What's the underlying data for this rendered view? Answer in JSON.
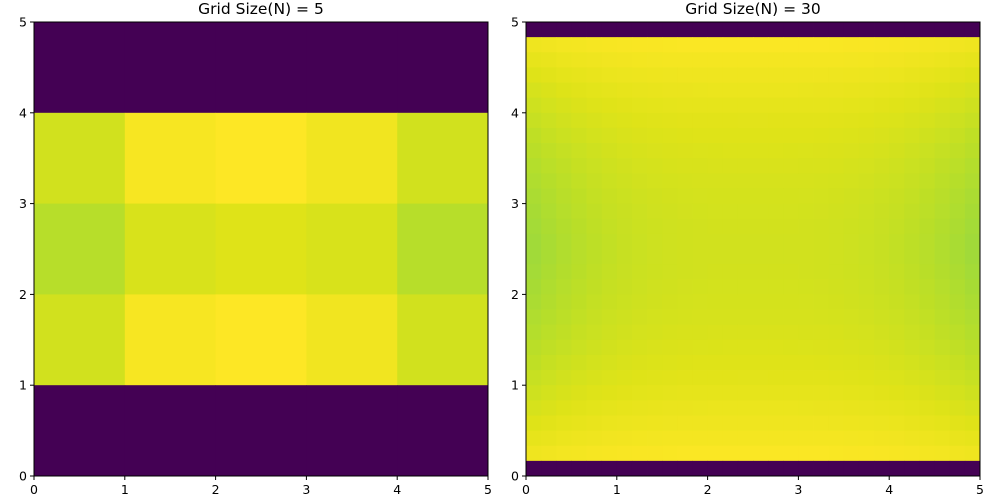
{
  "chart_data": [
    {
      "type": "heatmap",
      "title": "Grid Size(N) = 5",
      "colormap": "viridis",
      "xlim": [
        0,
        5
      ],
      "ylim": [
        0,
        5
      ],
      "xticks": [
        "0",
        "1",
        "2",
        "3",
        "4",
        "5"
      ],
      "yticks": [
        "0",
        "1",
        "2",
        "3",
        "4",
        "5"
      ],
      "grid": false,
      "color_range": [
        0,
        1
      ],
      "rows_top_to_bottom": [
        [
          0,
          0,
          0,
          0,
          0
        ],
        [
          0.93,
          0.99,
          1.0,
          0.98,
          0.93
        ],
        [
          0.89,
          0.94,
          0.95,
          0.94,
          0.89
        ],
        [
          0.93,
          0.99,
          1.0,
          0.98,
          0.93
        ],
        [
          0,
          0,
          0,
          0,
          0
        ]
      ]
    },
    {
      "type": "heatmap",
      "title": "Grid Size(N) = 30",
      "colormap": "viridis",
      "xlim": [
        0,
        5
      ],
      "ylim": [
        0,
        5
      ],
      "xticks": [
        "0",
        "1",
        "2",
        "3",
        "4",
        "5"
      ],
      "yticks": [
        "0",
        "1",
        "2",
        "3",
        "4",
        "5"
      ],
      "grid": false,
      "color_range": [
        0,
        1
      ],
      "n": 30,
      "boundary_rows": "top and bottom rows are 0",
      "interior": {
        "center_value": 0.93,
        "left_right_edge_value": 0.84,
        "near_top_bottom_value": 1.0
      }
    }
  ]
}
